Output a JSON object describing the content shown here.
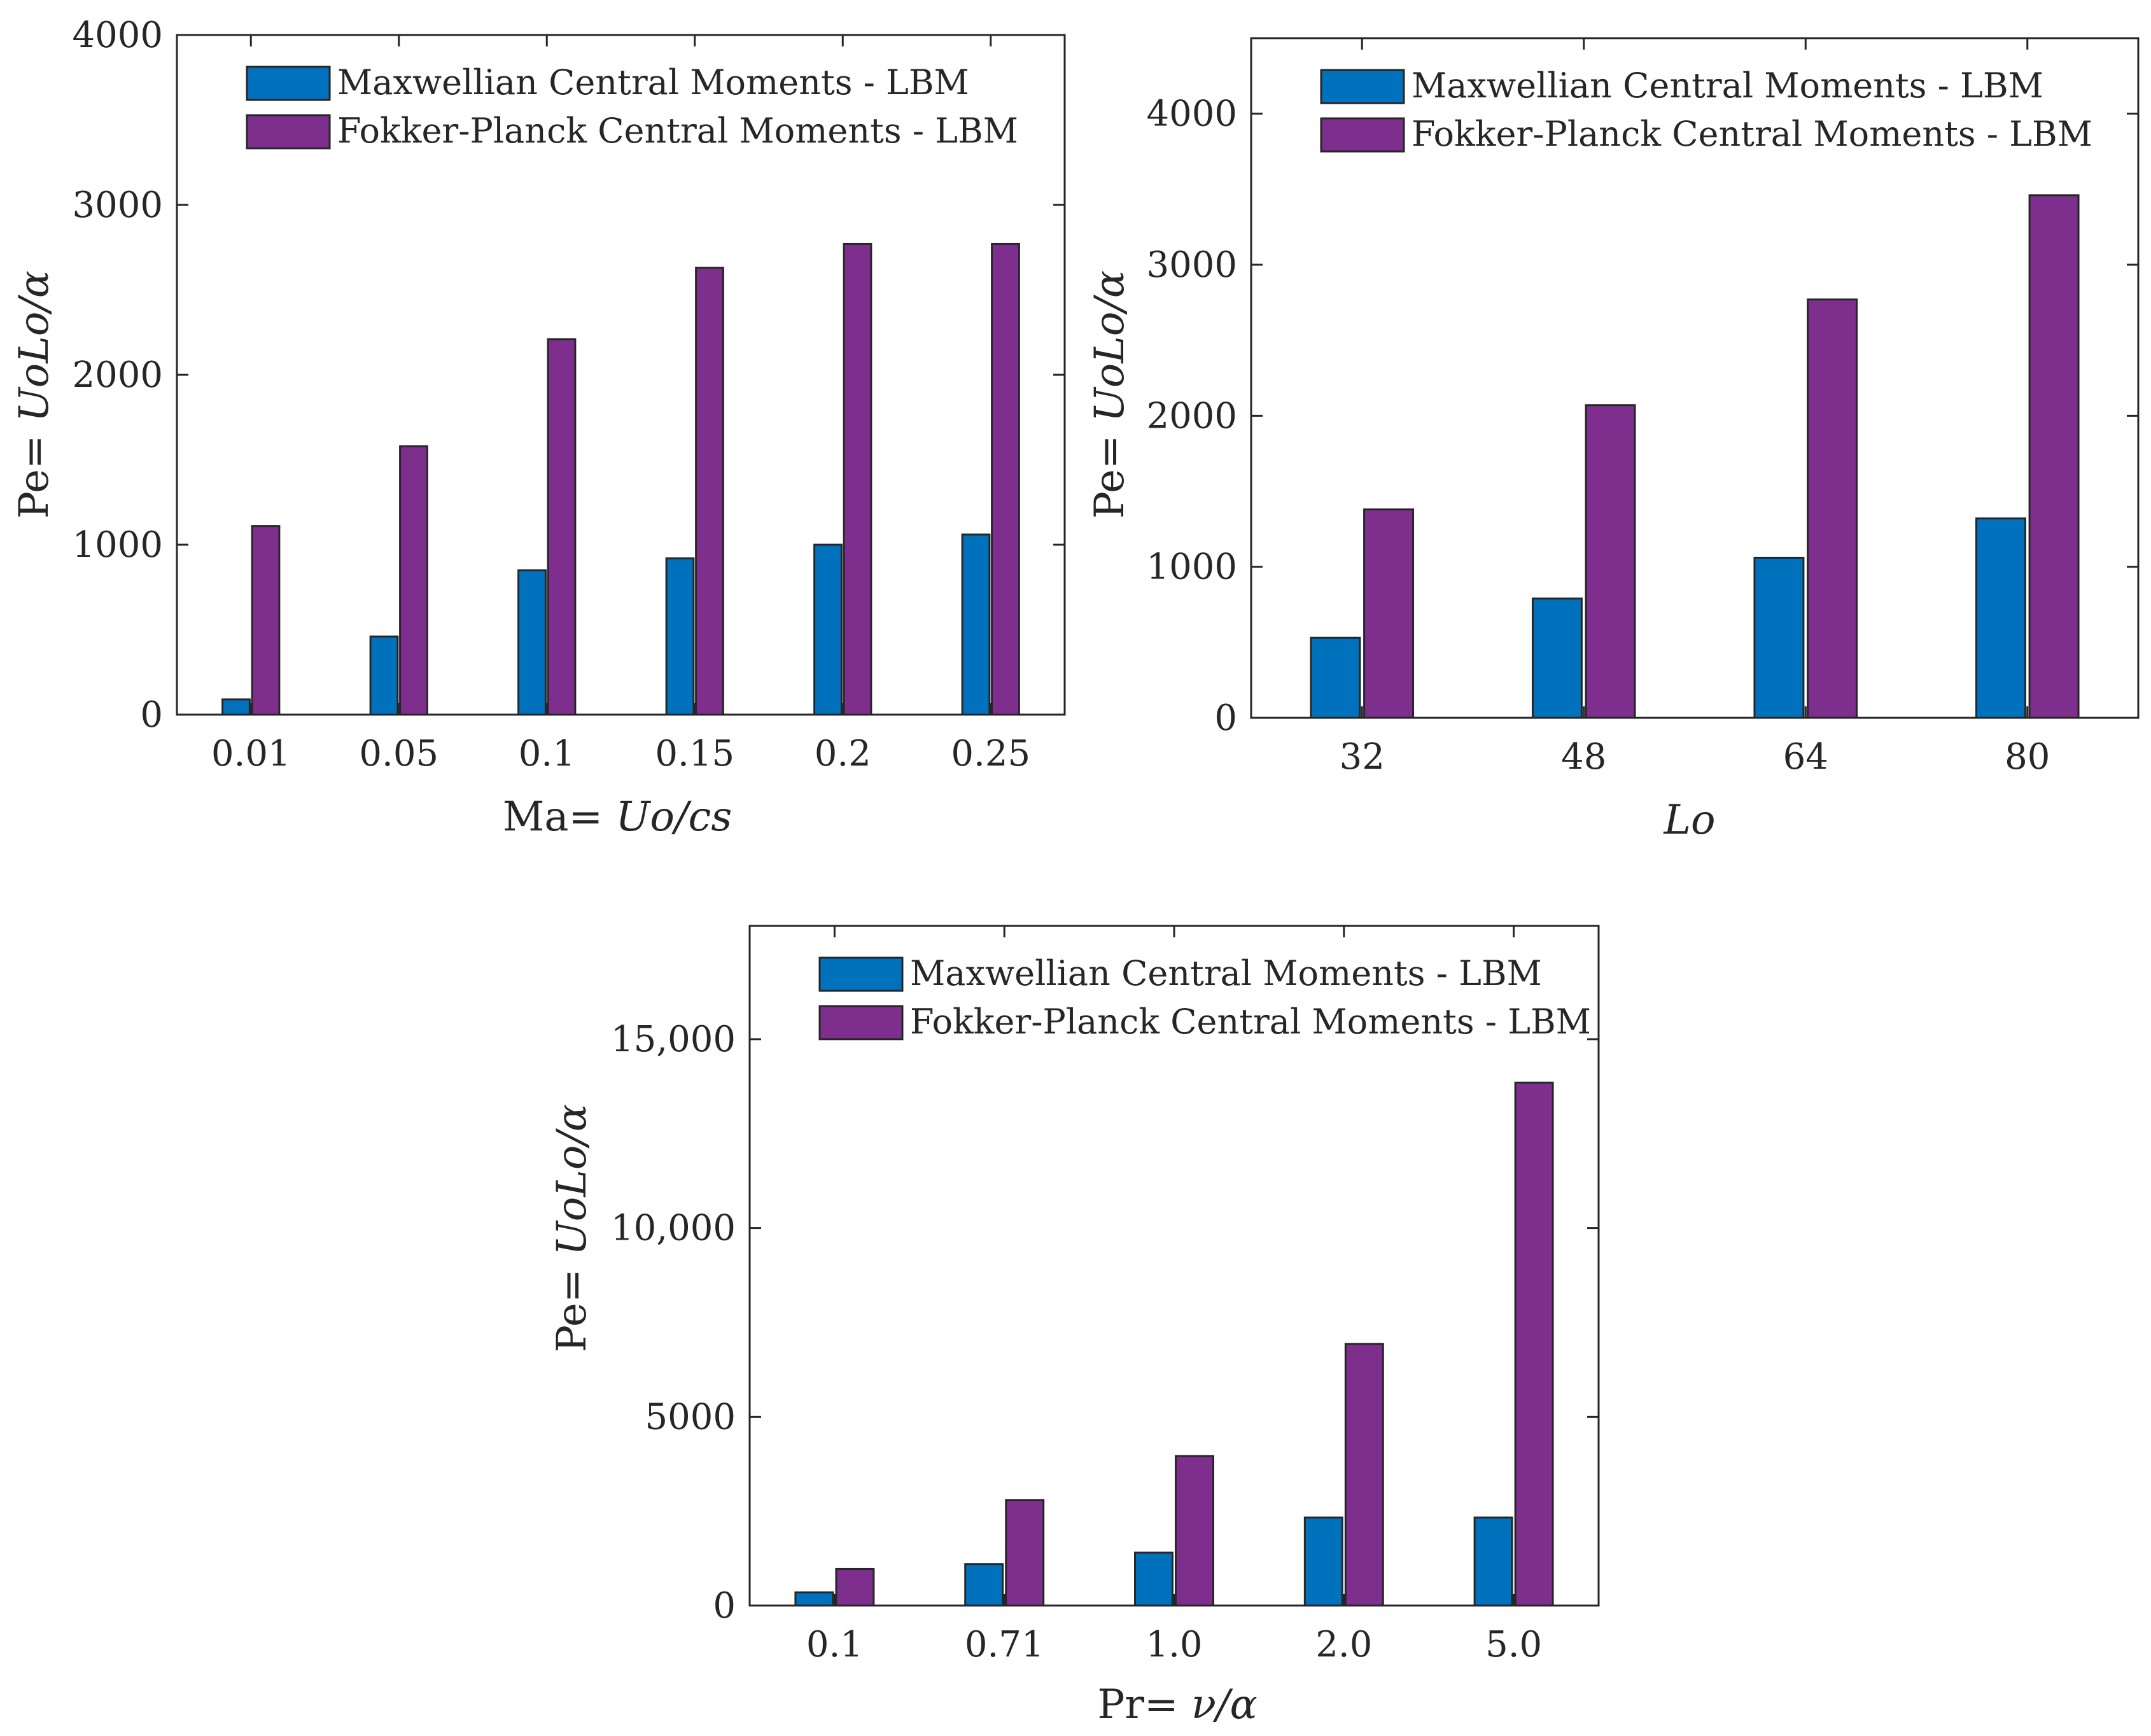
{
  "chart_data": [
    {
      "type": "bar",
      "categories": [
        "0.01",
        "0.05",
        "0.1",
        "0.15",
        "0.2",
        "0.25"
      ],
      "series": [
        {
          "name": "Maxwellian Central Moments - LBM",
          "color": "#0072BD",
          "values": [
            90,
            460,
            850,
            920,
            1000,
            1060
          ]
        },
        {
          "name": "Fokker-Planck Central Moments - LBM",
          "color": "#7E2F8E",
          "values": [
            1110,
            1580,
            2210,
            2630,
            2770,
            2770
          ]
        }
      ],
      "ylim": [
        0,
        4000
      ],
      "yticks": [
        0,
        1000,
        2000,
        3000,
        4000
      ],
      "ytick_labels": [
        "0",
        "1000",
        "2000",
        "3000",
        "4000"
      ],
      "xlabel_plain": "Ma= ",
      "xlabel_math": "Uo/cs",
      "ylabel_plain": "Pe= ",
      "ylabel_math": "UoLo/α",
      "legend_position": "top-left"
    },
    {
      "type": "bar",
      "categories": [
        "32",
        "48",
        "64",
        "80"
      ],
      "series": [
        {
          "name": "Maxwellian Central Moments - LBM",
          "color": "#0072BD",
          "values": [
            530,
            790,
            1060,
            1320
          ]
        },
        {
          "name": "Fokker-Planck Central Moments - LBM",
          "color": "#7E2F8E",
          "values": [
            1380,
            2070,
            2770,
            3460
          ]
        }
      ],
      "ylim": [
        0,
        4500
      ],
      "yticks": [
        0,
        1000,
        2000,
        3000,
        4000
      ],
      "ytick_labels": [
        "0",
        "1000",
        "2000",
        "3000",
        "4000"
      ],
      "xlabel_plain": "",
      "xlabel_math": "Lo",
      "ylabel_plain": "Pe= ",
      "ylabel_math": "UoLo/α",
      "legend_position": "top-left"
    },
    {
      "type": "bar",
      "categories": [
        "0.1",
        "0.71",
        "1.0",
        "2.0",
        "5.0"
      ],
      "series": [
        {
          "name": "Maxwellian Central Moments - LBM",
          "color": "#0072BD",
          "values": [
            350,
            1100,
            1400,
            2330,
            2330
          ]
        },
        {
          "name": "Fokker-Planck Central Moments - LBM",
          "color": "#7E2F8E",
          "values": [
            970,
            2790,
            3960,
            6930,
            13850
          ]
        }
      ],
      "ylim": [
        0,
        18000
      ],
      "yticks": [
        0,
        5000,
        10000,
        15000
      ],
      "ytick_labels": [
        "0",
        "5000",
        "10,000",
        "15,000"
      ],
      "xlabel_plain": "Pr= ",
      "xlabel_math": "ν/α",
      "ylabel_plain": "Pe= ",
      "ylabel_math": "UoLo/α",
      "legend_position": "top-left"
    }
  ]
}
